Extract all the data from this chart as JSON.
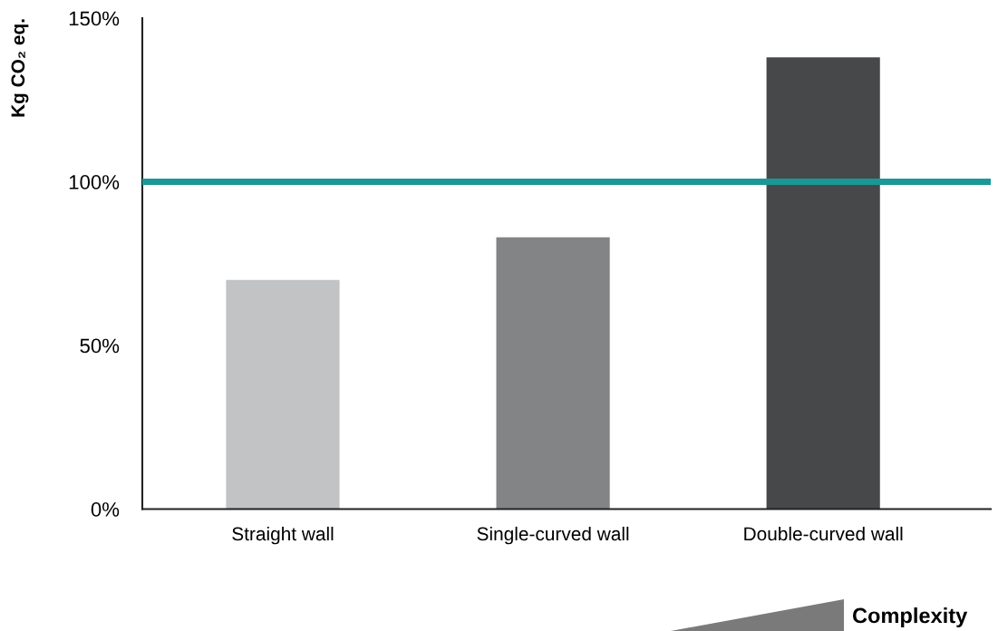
{
  "chart_data": {
    "type": "bar",
    "ylabel": "Kg CO₂ eq.",
    "categories": [
      "Straight wall",
      "Single-curved wall",
      "Double-curved wall"
    ],
    "values": [
      70,
      83,
      138
    ],
    "colors": [
      "#c2c3c5",
      "#838486",
      "#474849"
    ],
    "ylim": [
      0,
      150
    ],
    "yticks": [
      {
        "value": 0,
        "label": "0%"
      },
      {
        "value": 50,
        "label": "50%"
      },
      {
        "value": 100,
        "label": "100%"
      },
      {
        "value": 150,
        "label": "150%"
      }
    ],
    "ref_lines": [
      {
        "axis": "y",
        "value": 100,
        "color": "#1a9896"
      }
    ],
    "annotations": [
      "Complexity"
    ],
    "grid": false,
    "legend": false
  }
}
